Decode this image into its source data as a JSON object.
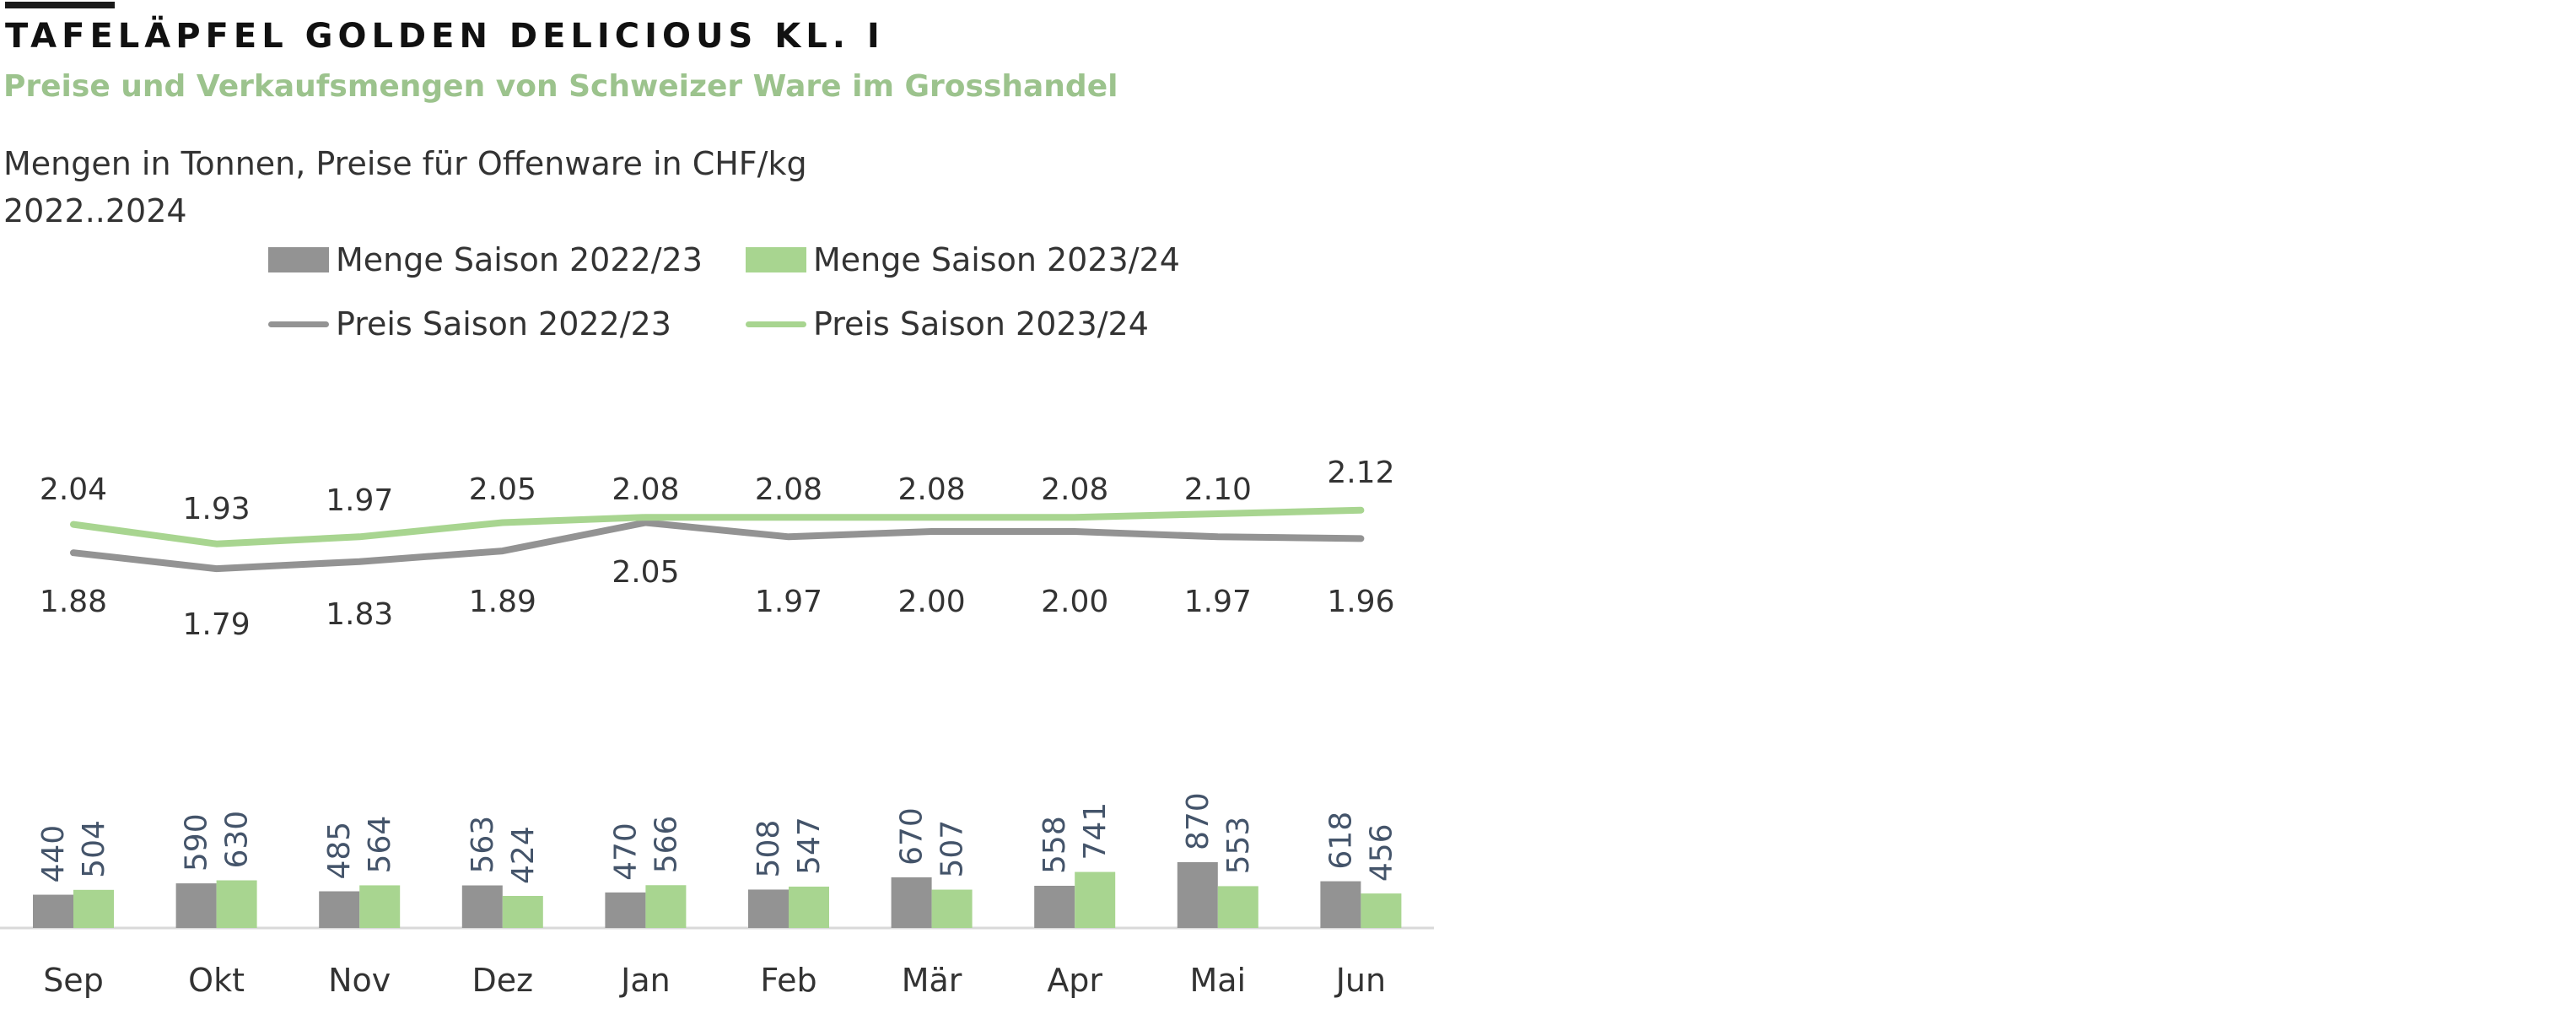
{
  "header": {
    "title": "TAFELÄPFEL GOLDEN DELICIOUS KL. I",
    "subtitle": "Preise und Verkaufsmengen von Schweizer Ware im Grosshandel",
    "units": "Mengen in Tonnen, Preise für Offenware in CHF/kg",
    "period": "2022..2024"
  },
  "colors": {
    "gray": "#939393",
    "green": "#a8d590",
    "label": "#44546a",
    "text": "#333333"
  },
  "chart_data": {
    "type": "bar+line",
    "categories": [
      "Sep",
      "Okt",
      "Nov",
      "Dez",
      "Jan",
      "Feb",
      "Mär",
      "Apr",
      "Mai",
      "Jun"
    ],
    "bars": [
      {
        "name": "Menge Saison 2022/23",
        "color": "#939393",
        "values": [
          440,
          590,
          485,
          563,
          470,
          508,
          670,
          558,
          870,
          618
        ]
      },
      {
        "name": "Menge Saison 2023/24",
        "color": "#a8d590",
        "values": [
          504,
          630,
          564,
          424,
          566,
          547,
          507,
          741,
          553,
          456
        ]
      }
    ],
    "lines": [
      {
        "name": "Preis Saison 2022/23",
        "color": "#939393",
        "values": [
          1.88,
          1.79,
          1.83,
          1.89,
          2.05,
          1.97,
          2.0,
          2.0,
          1.97,
          1.96
        ],
        "labels": [
          "1.88",
          "1.79",
          "1.83",
          "1.89",
          "2.05",
          "1.97",
          "2.00",
          "2.00",
          "1.97",
          "1.96"
        ]
      },
      {
        "name": "Preis Saison 2023/24",
        "color": "#a8d590",
        "values": [
          2.04,
          1.93,
          1.97,
          2.05,
          2.08,
          2.08,
          2.08,
          2.08,
          2.1,
          2.12
        ],
        "labels": [
          "2.04",
          "1.93",
          "1.97",
          "2.05",
          "2.08",
          "2.08",
          "2.08",
          "2.08",
          "2.10",
          "2.12"
        ]
      }
    ],
    "legend": "top",
    "grid": false
  }
}
